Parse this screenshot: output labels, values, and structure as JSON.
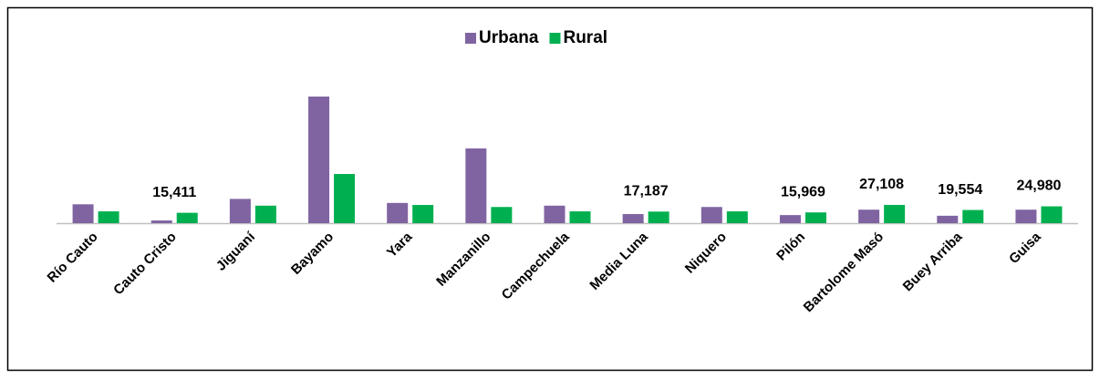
{
  "chart_data": {
    "type": "bar",
    "categories": [
      "Río Cauto",
      "Cauto Cristo",
      "Jiguaní",
      "Bayamo",
      "Yara",
      "Manzanillo",
      "Campechuela",
      "Media Luna",
      "Niquero",
      "Pilón",
      "Bartolome Masó",
      "Buey Arriba",
      "Guisa"
    ],
    "series": [
      {
        "name": "Urbana",
        "color": "#8064a2",
        "values": [
          28000,
          4000,
          36000,
          188000,
          30000,
          111000,
          26000,
          13500,
          24000,
          12000,
          20000,
          11000,
          20000
        ]
      },
      {
        "name": "Rural",
        "color": "#00b050",
        "values": [
          17500,
          15411,
          26000,
          73000,
          27000,
          24000,
          17500,
          17187,
          17500,
          15969,
          27108,
          19554,
          24980
        ],
        "value_labels": [
          null,
          "15,411",
          null,
          null,
          null,
          null,
          null,
          "17,187",
          null,
          "15,969",
          "27,108",
          "19,554",
          "24,980"
        ]
      }
    ],
    "legend": "top"
  }
}
